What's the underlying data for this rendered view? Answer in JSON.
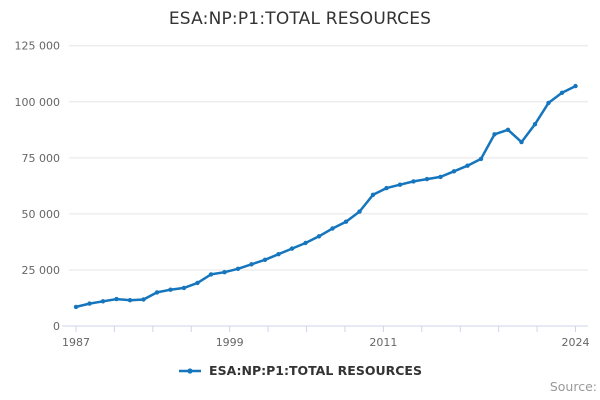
{
  "chart_data": {
    "type": "line",
    "title": "ESA:NP:P1:TOTAL RESOURCES",
    "xlabel": "",
    "ylabel": "",
    "ylim": [
      0,
      125000
    ],
    "grid": "horizontal",
    "legend_position": "bottom",
    "x": [
      1987,
      1988,
      1989,
      1990,
      1991,
      1992,
      1993,
      1994,
      1995,
      1996,
      1997,
      1998,
      1999,
      2000,
      2001,
      2002,
      2003,
      2004,
      2005,
      2006,
      2007,
      2008,
      2009,
      2010,
      2011,
      2012,
      2013,
      2014,
      2015,
      2016,
      2017,
      2018,
      2019,
      2020,
      2021,
      2022,
      2023,
      2024
    ],
    "series": [
      {
        "name": "ESA:NP:P1:TOTAL RESOURCES",
        "color": "#1575bd",
        "values": [
          8500,
          10000,
          11000,
          12000,
          11500,
          11800,
          15000,
          16200,
          17000,
          19200,
          23000,
          24000,
          25500,
          27500,
          29500,
          32000,
          34500,
          37000,
          40000,
          43500,
          46500,
          51000,
          58500,
          61500,
          63000,
          64500,
          65500,
          66500,
          69000,
          71500,
          74500,
          85500,
          87500,
          82000,
          90000,
          99500,
          104000,
          107000
        ]
      }
    ],
    "y_ticks": [
      {
        "value": 0,
        "label": "0"
      },
      {
        "value": 25000,
        "label": "25 000"
      },
      {
        "value": 50000,
        "label": "50 000"
      },
      {
        "value": 75000,
        "label": "75 000"
      },
      {
        "value": 100000,
        "label": "100 000"
      },
      {
        "value": 125000,
        "label": "125 000"
      }
    ],
    "x_tick_count": 14,
    "x_tick_labels": [
      "1987",
      "1999",
      "2011",
      "2024"
    ],
    "labeled_tick_indices": [
      0,
      4,
      8,
      13
    ]
  },
  "legend": {
    "label": "ESA:NP:P1:TOTAL RESOURCES"
  },
  "footer": {
    "source_label": "Source:"
  },
  "colors": {
    "line": "#1575bd",
    "grid": "#e6e6e6",
    "axis": "#ccd6eb",
    "title_text": "#333333",
    "tick_text": "#666666",
    "source_text": "#999999"
  }
}
